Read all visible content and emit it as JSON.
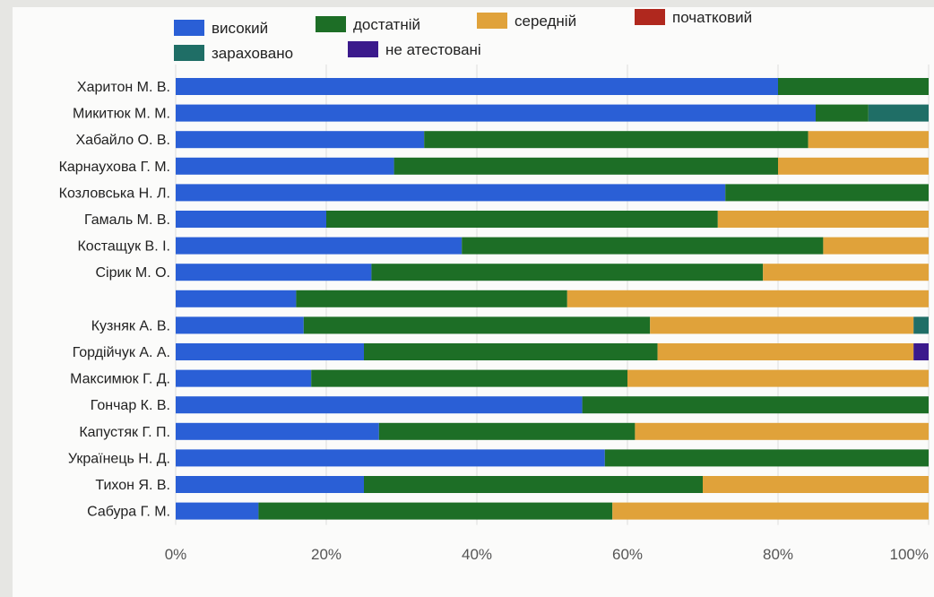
{
  "chart_data": {
    "type": "bar",
    "orientation": "horizontal",
    "stacked": true,
    "percent": true,
    "title": "",
    "xlabel": "",
    "ylabel": "",
    "xlim": [
      0,
      100
    ],
    "x_ticks": [
      "0%",
      "20%",
      "40%",
      "60%",
      "80%",
      "100%"
    ],
    "legend_position": "top",
    "categories": [
      "Харитон М. В.",
      "Микитюк М. М.",
      "Хабайло О. В.",
      "Карнаухова Г. М.",
      "Козловська Н. Л.",
      "Гамаль М. В.",
      "Костащук В. І.",
      "Сірик М. О.",
      "",
      "Кузняк А. В.",
      "Гордійчук А. А.",
      "Максимюк Г. Д.",
      "Гончар К. В.",
      "Капустяк Г. П.",
      "Українець Н. Д.",
      "Тихон Я. В.",
      "Сабура Г. М."
    ],
    "series": [
      {
        "name": "високий",
        "color": "#2a5fd6",
        "values": [
          80,
          85,
          33,
          29,
          73,
          20,
          38,
          26,
          16,
          17,
          25,
          18,
          54,
          27,
          57,
          25,
          11
        ]
      },
      {
        "name": "достатній",
        "color": "#1d6e26",
        "values": [
          20,
          7,
          51,
          51,
          27,
          52,
          48,
          52,
          36,
          46,
          39,
          42,
          46,
          34,
          43,
          45,
          47
        ]
      },
      {
        "name": "середній",
        "color": "#e0a23a",
        "values": [
          0,
          0,
          16,
          20,
          0,
          28,
          14,
          22,
          48,
          35,
          34,
          40,
          0,
          39,
          0,
          30,
          42
        ]
      },
      {
        "name": "початковий",
        "color": "#b0281e",
        "values": [
          0,
          0,
          0,
          0,
          0,
          0,
          0,
          0,
          0,
          0,
          0,
          0,
          0,
          0,
          0,
          0,
          0
        ]
      },
      {
        "name": "зараховано",
        "color": "#1f6e66",
        "values": [
          0,
          8,
          0,
          0,
          0,
          0,
          0,
          0,
          0,
          2,
          0,
          0,
          0,
          0,
          0,
          0,
          0
        ]
      },
      {
        "name": "не атестовані",
        "color": "#3b1a8c",
        "values": [
          0,
          0,
          0,
          0,
          0,
          0,
          0,
          0,
          0,
          0,
          2,
          0,
          0,
          0,
          0,
          0,
          0
        ]
      }
    ]
  }
}
